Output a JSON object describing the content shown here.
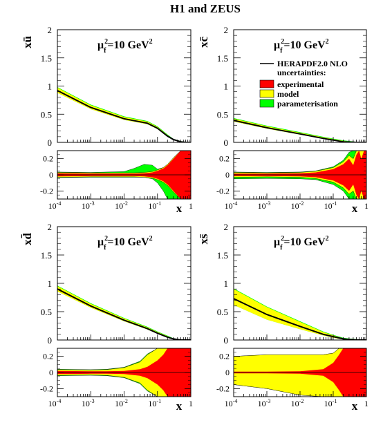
{
  "title": "H1 and ZEUS",
  "colors": {
    "experimental": "#ff0000",
    "model": "#ffff00",
    "parameterisation": "#00ff00",
    "central": "#000000"
  },
  "legend": {
    "central": "HERAPDF2.0 NLO",
    "heading": "uncertainties:",
    "items": [
      "experimental",
      "model",
      "parameterisation"
    ]
  },
  "scale_label": {
    "mu": "μ",
    "sub": "f",
    "sup": "2",
    "value": "=10 GeV",
    "value_sup": "2"
  },
  "xlabel": "x",
  "x_ticks_main": [
    "10",
    "10",
    "10",
    "10",
    "1"
  ],
  "x_ticks_exp": [
    "-4",
    "-3",
    "-2",
    "-1",
    ""
  ],
  "chart_data": [
    {
      "id": "xu",
      "type": "area",
      "ylabel": "xū",
      "xscale": "log",
      "xlim": [
        0.0001,
        1
      ],
      "ylim": [
        0,
        2
      ],
      "yticks": [
        "0",
        "0.5",
        "1",
        "1.5",
        "2"
      ],
      "x": [
        0.0001,
        0.001,
        0.01,
        0.05,
        0.1,
        0.2,
        0.3,
        0.5,
        0.7,
        1.0
      ],
      "central": [
        0.92,
        0.62,
        0.42,
        0.34,
        0.25,
        0.11,
        0.05,
        0.01,
        0.0,
        0.0
      ],
      "ratio": {
        "ylim": [
          -0.3,
          0.3
        ],
        "yticks": [
          "-0.2",
          "0",
          "0.2"
        ],
        "x": [
          0.0001,
          0.001,
          0.01,
          0.02,
          0.04,
          0.07,
          0.1,
          0.15,
          0.2,
          0.3,
          0.5,
          0.7,
          1.0
        ],
        "exp": [
          0.02,
          0.015,
          0.015,
          0.015,
          0.02,
          0.03,
          0.05,
          0.08,
          0.12,
          0.2,
          0.3,
          0.3,
          0.3
        ],
        "model": [
          0.03,
          0.025,
          0.025,
          0.025,
          0.03,
          0.04,
          0.06,
          0.09,
          0.13,
          0.21,
          0.3,
          0.3,
          0.3
        ],
        "par_up": [
          0.035,
          0.03,
          0.04,
          0.08,
          0.13,
          0.12,
          0.07,
          0.09,
          0.13,
          0.21,
          0.3,
          0.3,
          0.3
        ],
        "par_dn": [
          0.035,
          0.03,
          0.03,
          0.03,
          0.03,
          0.05,
          0.1,
          0.2,
          0.3,
          0.3,
          0.3,
          0.3,
          0.3
        ]
      }
    },
    {
      "id": "xc",
      "type": "area",
      "ylabel": "xc̄",
      "xscale": "log",
      "xlim": [
        0.0001,
        1
      ],
      "ylim": [
        0,
        2
      ],
      "yticks": [
        "0",
        "0.5",
        "1",
        "1.5",
        "2"
      ],
      "x": [
        0.0001,
        0.001,
        0.01,
        0.05,
        0.1,
        0.2,
        0.5,
        1.0
      ],
      "central": [
        0.39,
        0.26,
        0.15,
        0.07,
        0.04,
        0.01,
        0.0,
        0.0
      ],
      "ratio": {
        "ylim": [
          -0.3,
          0.3
        ],
        "yticks": [
          "-0.2",
          "0",
          "0.2"
        ],
        "x": [
          0.0001,
          0.001,
          0.01,
          0.03,
          0.1,
          0.2,
          0.3,
          0.4,
          0.5,
          0.6,
          0.7,
          0.85,
          1.0
        ],
        "exp": [
          0.015,
          0.015,
          0.02,
          0.03,
          0.07,
          0.13,
          0.2,
          0.12,
          0.25,
          0.3,
          0.2,
          0.3,
          0.3
        ],
        "model": [
          0.03,
          0.025,
          0.03,
          0.045,
          0.09,
          0.16,
          0.24,
          0.2,
          0.3,
          0.3,
          0.3,
          0.3,
          0.3
        ],
        "par_up": [
          0.035,
          0.03,
          0.035,
          0.05,
          0.1,
          0.18,
          0.28,
          0.3,
          0.3,
          0.3,
          0.3,
          0.3,
          0.3
        ],
        "par_dn": [
          0.05,
          0.045,
          0.05,
          0.06,
          0.12,
          0.2,
          0.3,
          0.3,
          0.3,
          0.3,
          0.3,
          0.3,
          0.3
        ]
      }
    },
    {
      "id": "xd",
      "type": "area",
      "ylabel": "xd̄",
      "xscale": "log",
      "xlim": [
        0.0001,
        1
      ],
      "ylim": [
        0,
        2
      ],
      "yticks": [
        "0",
        "0.5",
        "1",
        "1.5",
        "2"
      ],
      "x": [
        0.0001,
        0.001,
        0.01,
        0.05,
        0.1,
        0.2,
        0.3,
        0.5,
        0.7,
        1.0
      ],
      "central": [
        0.9,
        0.6,
        0.35,
        0.2,
        0.12,
        0.05,
        0.02,
        0.0,
        0.0,
        0.0
      ],
      "ratio": {
        "ylim": [
          -0.3,
          0.3
        ],
        "yticks": [
          "-0.2",
          "0",
          "0.2"
        ],
        "x": [
          0.0001,
          0.001,
          0.003,
          0.01,
          0.03,
          0.05,
          0.1,
          0.15,
          0.2,
          0.3,
          0.5,
          0.7,
          1.0
        ],
        "exp": [
          0.02,
          0.015,
          0.015,
          0.02,
          0.04,
          0.07,
          0.15,
          0.22,
          0.3,
          0.3,
          0.3,
          0.3,
          0.3
        ],
        "model": [
          0.035,
          0.03,
          0.035,
          0.06,
          0.13,
          0.22,
          0.3,
          0.3,
          0.3,
          0.3,
          0.3,
          0.3,
          0.3
        ],
        "par_up": [
          0.04,
          0.035,
          0.04,
          0.065,
          0.14,
          0.23,
          0.3,
          0.3,
          0.3,
          0.3,
          0.3,
          0.3,
          0.3
        ],
        "par_dn": [
          0.04,
          0.035,
          0.04,
          0.065,
          0.14,
          0.23,
          0.3,
          0.3,
          0.3,
          0.3,
          0.3,
          0.3,
          0.3
        ]
      }
    },
    {
      "id": "xs",
      "type": "area",
      "ylabel": "xs̄",
      "xscale": "log",
      "xlim": [
        0.0001,
        1
      ],
      "ylim": [
        0,
        2
      ],
      "yticks": [
        "0",
        "0.5",
        "1",
        "1.5",
        "2"
      ],
      "x": [
        0.0001,
        0.001,
        0.01,
        0.05,
        0.1,
        0.2,
        0.3,
        0.5,
        0.7,
        1.0
      ],
      "central": [
        0.73,
        0.45,
        0.24,
        0.1,
        0.06,
        0.02,
        0.01,
        0.0,
        0.0,
        0.0
      ],
      "central_band_up": [
        0.9,
        0.58,
        0.32,
        0.14,
        0.08,
        0.03,
        0.015,
        0.005,
        0.0,
        0.0
      ],
      "central_band_dn": [
        0.62,
        0.36,
        0.19,
        0.08,
        0.04,
        0.01,
        0.005,
        0.0,
        0.0,
        0.0
      ],
      "ratio": {
        "ylim": [
          -0.3,
          0.3
        ],
        "yticks": [
          "-0.2",
          "0",
          "0.2"
        ],
        "x": [
          0.0001,
          0.001,
          0.01,
          0.05,
          0.1,
          0.15,
          0.2,
          0.3,
          0.5,
          0.7,
          1.0
        ],
        "exp": [
          0.01,
          0.01,
          0.015,
          0.04,
          0.12,
          0.22,
          0.3,
          0.3,
          0.3,
          0.3,
          0.3
        ],
        "model": [
          0.2,
          0.22,
          0.22,
          0.22,
          0.24,
          0.3,
          0.3,
          0.3,
          0.3,
          0.3,
          0.3
        ],
        "model_dn": [
          0.15,
          0.2,
          0.28,
          0.3,
          0.3,
          0.3,
          0.3,
          0.3,
          0.3,
          0.3,
          0.3
        ],
        "par_up": [
          0.2,
          0.22,
          0.22,
          0.22,
          0.24,
          0.3,
          0.3,
          0.3,
          0.3,
          0.3,
          0.3
        ],
        "par_dn": [
          0.15,
          0.2,
          0.28,
          0.3,
          0.3,
          0.3,
          0.3,
          0.3,
          0.3,
          0.3,
          0.3
        ]
      }
    }
  ]
}
